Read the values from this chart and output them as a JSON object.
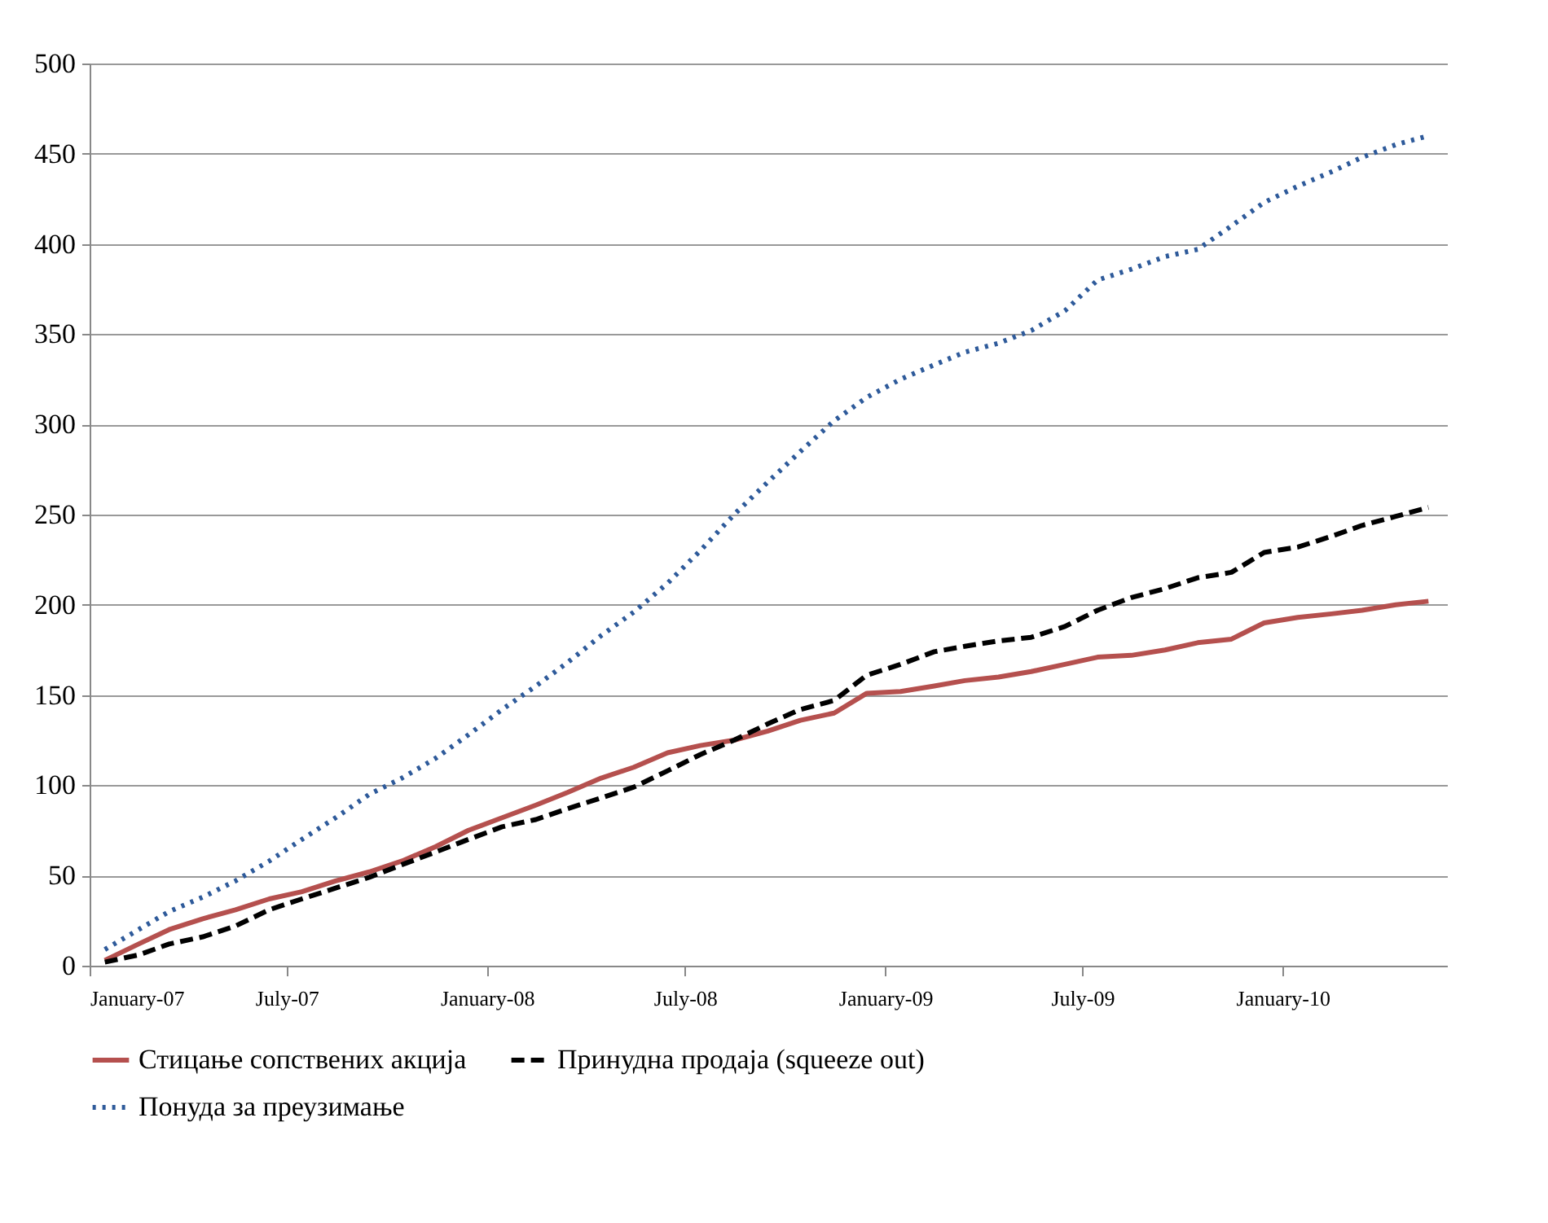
{
  "chart_data": {
    "type": "line",
    "x": [
      "2007-01-15",
      "2007-02-15",
      "2007-03-15",
      "2007-04-15",
      "2007-05-15",
      "2007-06-15",
      "2007-07-15",
      "2007-08-15",
      "2007-09-15",
      "2007-10-15",
      "2007-11-15",
      "2007-12-15",
      "2008-01-15",
      "2008-02-15",
      "2008-03-15",
      "2008-04-15",
      "2008-05-15",
      "2008-06-15",
      "2008-07-15",
      "2008-08-15",
      "2008-09-15",
      "2008-10-15",
      "2008-11-15",
      "2008-12-15",
      "2009-01-15",
      "2009-02-15",
      "2009-03-15",
      "2009-04-15",
      "2009-05-15",
      "2009-06-15",
      "2009-07-15",
      "2009-08-15",
      "2009-09-15",
      "2009-10-15",
      "2009-11-15",
      "2009-12-15",
      "2010-01-15",
      "2010-02-15",
      "2010-03-15",
      "2010-04-15",
      "2010-05-15"
    ],
    "series": [
      {
        "name": "Стицање сопствених акција",
        "color": "#b5504e",
        "line_style": "solid",
        "values": [
          3,
          12,
          20,
          26,
          31,
          37,
          41,
          47,
          52,
          58,
          66,
          75,
          82,
          89,
          96,
          104,
          110,
          118,
          122,
          125,
          130,
          136,
          140,
          151,
          152,
          155,
          158,
          160,
          163,
          167,
          171,
          172,
          175,
          179,
          181,
          190,
          193,
          195,
          197,
          200,
          202
        ]
      },
      {
        "name": "Принудна продаја (squeeze out)",
        "color": "#000000",
        "line_style": "dashed",
        "values": [
          2,
          6,
          12,
          16,
          22,
          31,
          37,
          43,
          49,
          56,
          63,
          70,
          77,
          81,
          87,
          93,
          99,
          108,
          117,
          125,
          134,
          142,
          147,
          161,
          167,
          174,
          177,
          180,
          182,
          188,
          197,
          204,
          209,
          215,
          218,
          229,
          232,
          238,
          244,
          249,
          254
        ]
      },
      {
        "name": "Понуда за преузимање",
        "color": "#2e5a9a",
        "line_style": "dotted",
        "values": [
          9,
          20,
          30,
          38,
          47,
          58,
          70,
          82,
          95,
          104,
          115,
          128,
          142,
          155,
          168,
          183,
          196,
          212,
          230,
          250,
          268,
          285,
          302,
          315,
          325,
          333,
          340,
          345,
          352,
          363,
          380,
          386,
          393,
          397,
          410,
          423,
          432,
          440,
          448,
          455,
          460
        ]
      }
    ],
    "xlim": [
      "2007-01-01",
      "2010-06-01"
    ],
    "xticks": [
      {
        "value": "2007-01-01",
        "label": "January-07"
      },
      {
        "value": "2007-07-01",
        "label": "July-07"
      },
      {
        "value": "2008-01-01",
        "label": "January-08"
      },
      {
        "value": "2008-07-01",
        "label": "July-08"
      },
      {
        "value": "2009-01-01",
        "label": "January-09"
      },
      {
        "value": "2009-07-01",
        "label": "July-09"
      },
      {
        "value": "2010-01-01",
        "label": "January-10"
      }
    ],
    "ylim": [
      0,
      500
    ],
    "yticks": [
      0,
      50,
      100,
      150,
      200,
      250,
      300,
      350,
      400,
      450,
      500
    ],
    "grid": "y",
    "legend": "bottom",
    "marker": "none"
  }
}
